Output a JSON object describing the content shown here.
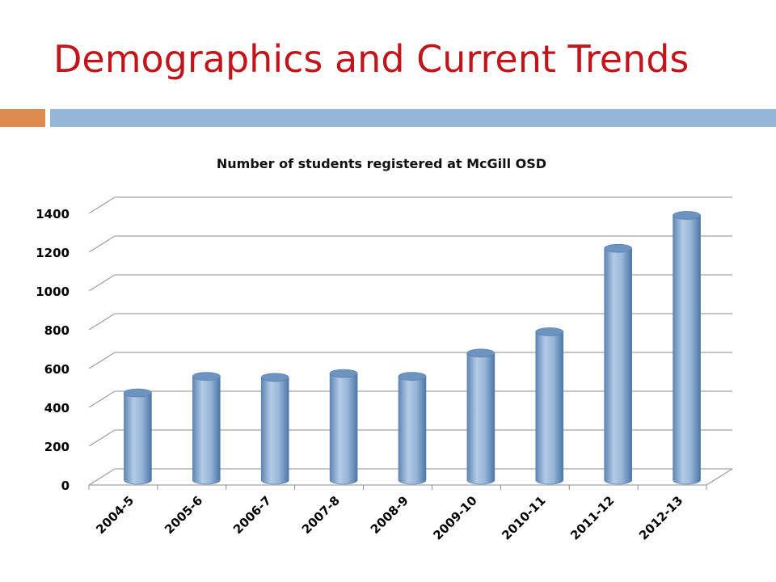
{
  "slide": {
    "title": "Demographics and Current Trends"
  },
  "colors": {
    "title": "#c0161b",
    "accent": "#dd8a4f",
    "rule": "#94b6d7",
    "bar": "#8fb0d4"
  },
  "chart_data": {
    "type": "bar",
    "style": "3d-cylinder",
    "title": "Number of  students registered at McGill OSD",
    "xlabel": "",
    "ylabel": "",
    "categories": [
      "2004-5",
      "2005-6",
      "2006-7",
      "2007-8",
      "2008-9",
      "2009-10",
      "2010-11",
      "2011-12",
      "2012-13"
    ],
    "values": [
      450,
      535,
      530,
      550,
      535,
      655,
      765,
      1195,
      1365
    ],
    "ylim": [
      0,
      1400
    ],
    "yticks": [
      0,
      200,
      400,
      600,
      800,
      1000,
      1200,
      1400
    ],
    "grid": true,
    "legend": "none"
  }
}
